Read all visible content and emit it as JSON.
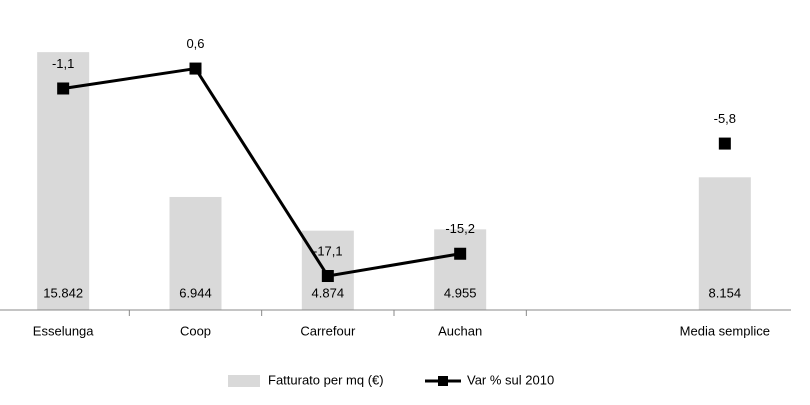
{
  "chart_data": {
    "type": "combo",
    "categories": [
      "Esselunga",
      "Coop",
      "Carrefour",
      "Auchan",
      null,
      "Media semplice"
    ],
    "series": [
      {
        "name": "Fatturato per mq (€)",
        "type": "bar",
        "color": "#d9d9d9",
        "values": [
          15842,
          6944,
          4874,
          4955,
          null,
          8154
        ],
        "value_labels": [
          "15.842",
          "6.944",
          "4.874",
          "4.955",
          null,
          "8.154"
        ]
      },
      {
        "name": "Var % sul 2010",
        "type": "line",
        "axis": "y2",
        "color": "#000000",
        "values": [
          -1.1,
          0.6,
          -17.1,
          -15.2,
          null,
          -5.8
        ],
        "value_labels": [
          "-1,1",
          "0,6",
          "-17,1",
          "-15,2",
          null,
          "-5,8"
        ]
      }
    ],
    "ylim": [
      0,
      18000
    ],
    "y2lim": [
      -20,
      5
    ]
  }
}
